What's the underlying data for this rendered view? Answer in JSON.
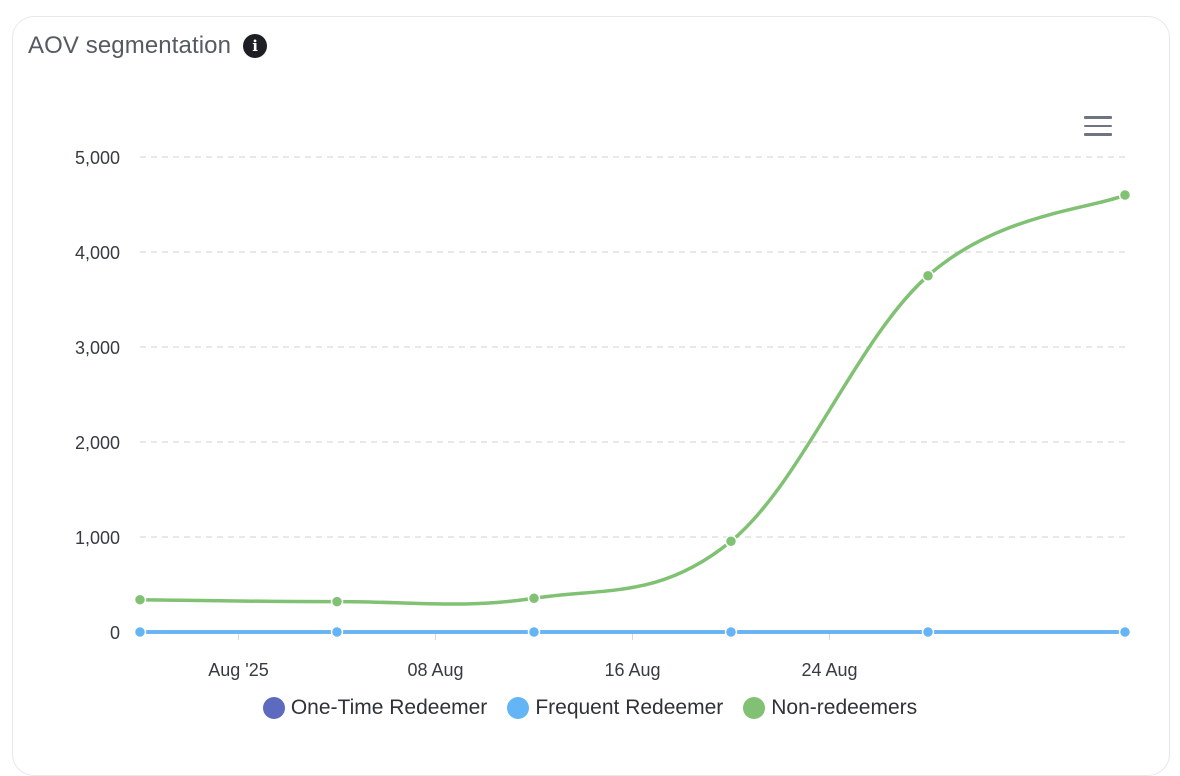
{
  "card": {
    "title": "AOV segmentation",
    "info_icon": "info-icon",
    "menu_icon": "hamburger-menu-icon"
  },
  "chart_data": {
    "type": "line",
    "title": "AOV segmentation",
    "xlabel": "",
    "ylabel": "",
    "x": [
      "2025-07-29",
      "2025-08-04",
      "2025-08-10",
      "2025-08-16",
      "2025-08-22",
      "2025-08-28"
    ],
    "x_ticks": [
      {
        "label": "Aug '25",
        "date": "2025-08-01"
      },
      {
        "label": "08 Aug",
        "date": "2025-08-07"
      },
      {
        "label": "16 Aug",
        "date": "2025-08-13"
      },
      {
        "label": "24 Aug",
        "date": "2025-08-19"
      }
    ],
    "y_ticks": [
      "0",
      "1,000",
      "2,000",
      "3,000",
      "4,000",
      "5,000"
    ],
    "ylim": [
      0,
      5000
    ],
    "grid": true,
    "legend_position": "bottom",
    "series": [
      {
        "name": "One-Time Redeemer",
        "color": "#5c6bc0",
        "values": [
          0,
          0,
          0,
          0,
          0,
          0
        ]
      },
      {
        "name": "Frequent Redeemer",
        "color": "#64b5f6",
        "values": [
          0,
          0,
          0,
          0,
          0,
          0
        ]
      },
      {
        "name": "Non-redeemers",
        "color": "#81c174",
        "values": [
          340,
          320,
          355,
          955,
          3750,
          4600
        ]
      }
    ]
  }
}
